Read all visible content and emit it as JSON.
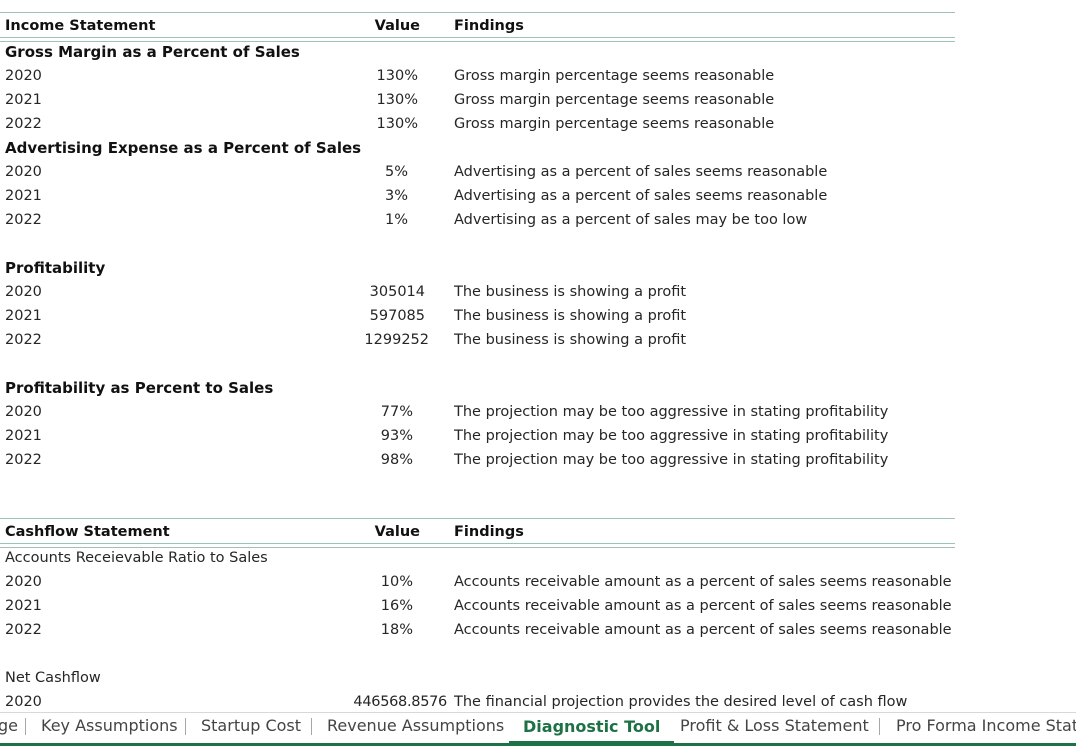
{
  "income": {
    "header": {
      "label": "Income Statement",
      "value": "Value",
      "findings": "Findings"
    },
    "gross_margin": {
      "title": "Gross Margin as a Percent of Sales",
      "rows": [
        {
          "year": "2020",
          "value": "130%",
          "finding": "Gross margin percentage seems reasonable"
        },
        {
          "year": "2021",
          "value": "130%",
          "finding": "Gross margin percentage seems reasonable"
        },
        {
          "year": "2022",
          "value": "130%",
          "finding": "Gross margin percentage seems reasonable"
        }
      ]
    },
    "advertising": {
      "title": "Advertising Expense as a Percent of Sales",
      "rows": [
        {
          "year": "2020",
          "value": "5%",
          "finding": "Advertising as a percent of sales seems reasonable"
        },
        {
          "year": "2021",
          "value": "3%",
          "finding": "Advertising as a percent of sales seems reasonable"
        },
        {
          "year": "2022",
          "value": "1%",
          "finding": "Advertising as a percent of sales may be too low"
        }
      ]
    },
    "profitability": {
      "title": "Profitability",
      "rows": [
        {
          "year": "2020",
          "value": "305014",
          "finding": "The business is showing a profit"
        },
        {
          "year": "2021",
          "value": "597085",
          "finding": "The business is showing a profit"
        },
        {
          "year": "2022",
          "value": "1299252",
          "finding": "The business is showing a profit"
        }
      ]
    },
    "profit_pct": {
      "title": "Profitability as Percent to Sales",
      "rows": [
        {
          "year": "2020",
          "value": "77%",
          "finding": "The projection may be too aggressive in stating profitability"
        },
        {
          "year": "2021",
          "value": "93%",
          "finding": "The projection may be too aggressive in stating profitability"
        },
        {
          "year": "2022",
          "value": "98%",
          "finding": "The projection may be too aggressive in stating profitability"
        }
      ]
    }
  },
  "cashflow": {
    "header": {
      "label": "Cashflow Statement",
      "value": "Value",
      "findings": "Findings"
    },
    "ar_ratio": {
      "title": "Accounts Receievable Ratio to Sales",
      "rows": [
        {
          "year": "2020",
          "value": "10%",
          "finding": "Accounts receivable amount as a percent of sales seems reasonable"
        },
        {
          "year": "2021",
          "value": "16%",
          "finding": "Accounts receivable amount as a percent of sales seems reasonable"
        },
        {
          "year": "2022",
          "value": "18%",
          "finding": "Accounts receivable amount as a percent of sales seems reasonable"
        }
      ]
    },
    "net_cashflow": {
      "title": "Net Cashflow",
      "rows": [
        {
          "year": "2020",
          "value": "446568.8576",
          "finding": "The financial projection provides the desired level of cash flow"
        }
      ]
    }
  },
  "tabs": {
    "partial_left": "ge",
    "items": [
      "Key Assumptions",
      "Startup Cost",
      "Revenue Assumptions",
      "Diagnostic Tool",
      "Profit & Loss Statement",
      "Pro Forma Income State"
    ],
    "active": "Diagnostic Tool"
  }
}
